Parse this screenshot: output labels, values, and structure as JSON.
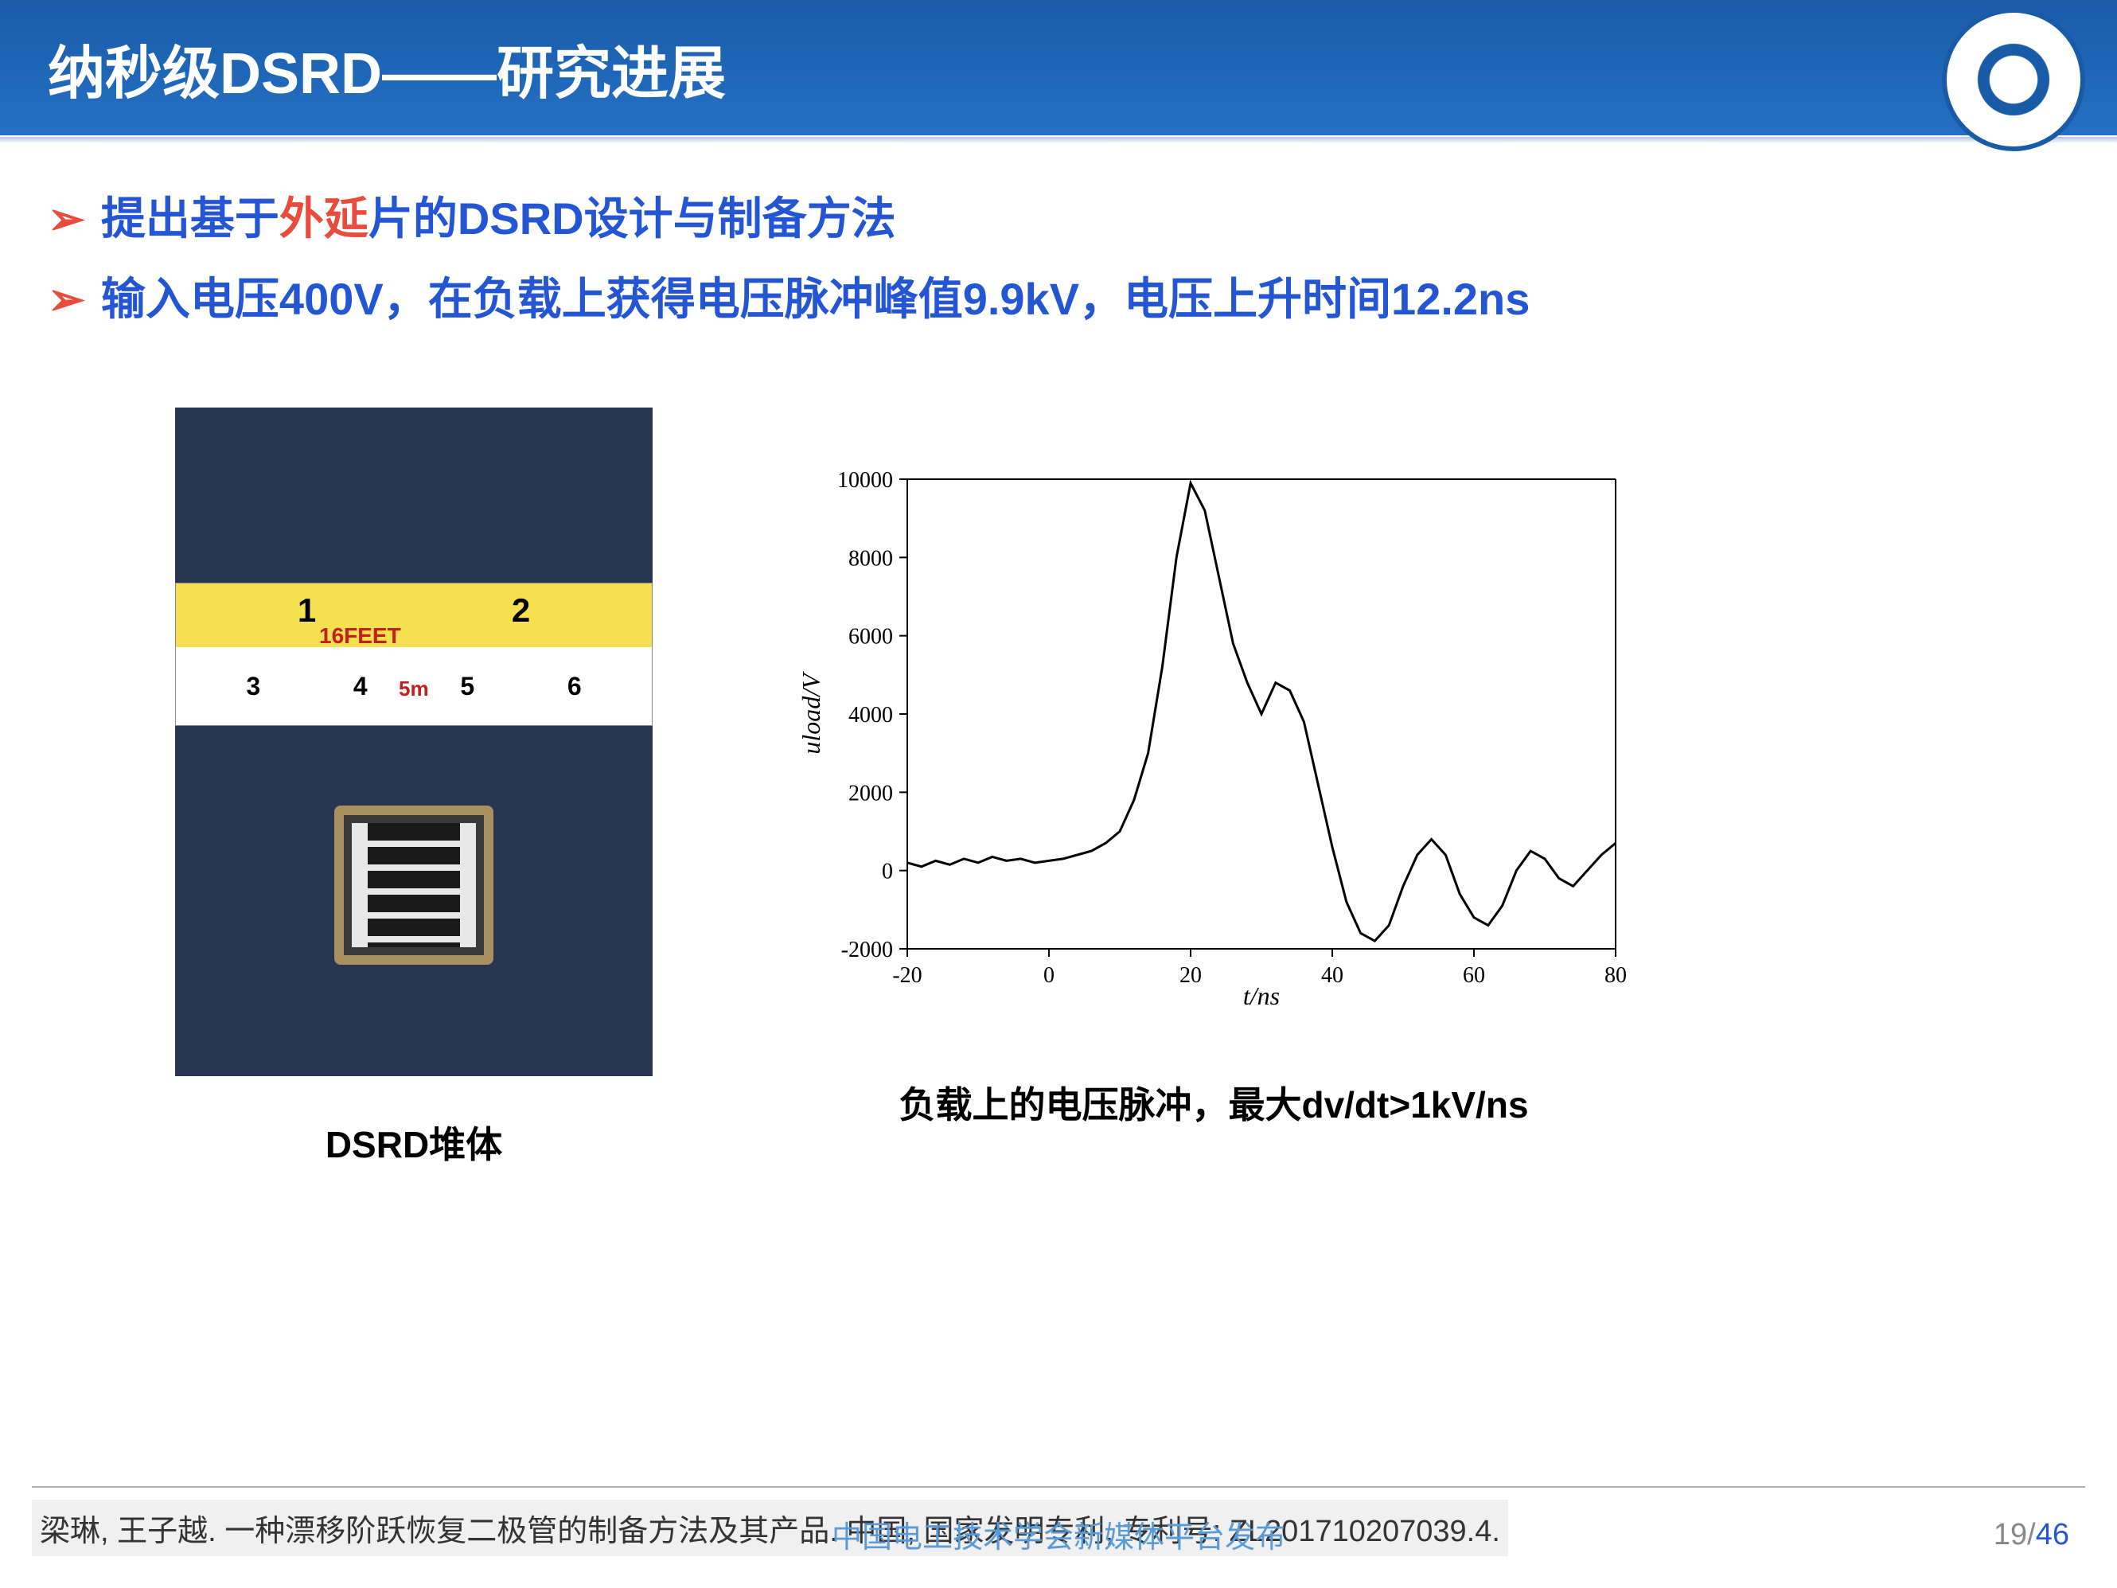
{
  "title": "纳秒级DSRD——研究进展",
  "bullets": [
    {
      "prefix": "提出基于",
      "highlight": "外延",
      "suffix": "片的DSRD设计与制备方法"
    },
    {
      "prefix": "输入电压400V，在负载上获得电压脉冲峰值9.9kV，电压上升时间12.2ns",
      "highlight": "",
      "suffix": ""
    }
  ],
  "photo": {
    "caption": "DSRD堆体",
    "ruler_top": [
      "1",
      "2"
    ],
    "ruler_top_label": "16FEET",
    "ruler_bottom": [
      "3",
      "4",
      "5",
      "6"
    ],
    "ruler_bottom_label": "5m",
    "background_color": "#2a3550"
  },
  "chart": {
    "type": "line",
    "caption": "负载上的电压脉冲，最大dv/dt>1kV/ns",
    "xlabel": "t/ns",
    "ylabel": "uload/V",
    "xlim": [
      -20,
      80
    ],
    "ylim": [
      -2000,
      10000
    ],
    "xtick_step": 20,
    "ytick_step": 2000,
    "xticks": [
      -20,
      0,
      20,
      40,
      60,
      80
    ],
    "yticks": [
      -2000,
      0,
      2000,
      4000,
      6000,
      8000,
      10000
    ],
    "line_color": "#000000",
    "line_width": 3,
    "axis_color": "#000000",
    "label_fontsize": 32,
    "tick_fontsize": 28,
    "font_family": "Times New Roman, serif",
    "data": {
      "t": [
        -20,
        -18,
        -16,
        -14,
        -12,
        -10,
        -8,
        -6,
        -4,
        -2,
        0,
        2,
        4,
        6,
        8,
        10,
        12,
        14,
        16,
        18,
        20,
        22,
        24,
        26,
        28,
        30,
        32,
        34,
        36,
        38,
        40,
        42,
        44,
        46,
        48,
        50,
        52,
        54,
        56,
        58,
        60,
        62,
        64,
        66,
        68,
        70,
        72,
        74,
        76,
        78,
        80
      ],
      "v": [
        200,
        100,
        250,
        150,
        300,
        200,
        350,
        250,
        300,
        200,
        250,
        300,
        400,
        500,
        700,
        1000,
        1800,
        3000,
        5200,
        8000,
        9900,
        9200,
        7500,
        5800,
        4800,
        4000,
        4800,
        4600,
        3800,
        2200,
        600,
        -800,
        -1600,
        -1800,
        -1400,
        -400,
        400,
        800,
        400,
        -600,
        -1200,
        -1400,
        -900,
        0,
        500,
        300,
        -200,
        -400,
        0,
        400,
        700
      ]
    }
  },
  "citation": "梁琳, 王子越. 一种漂移阶跃恢复二极管的制备方法及其产品. 中国, 国家发明专利, 专利号: ZL201710207039.4.",
  "page": {
    "current": "19",
    "total": "46"
  },
  "watermark": "中国电工技术学会新媒体平台发布"
}
